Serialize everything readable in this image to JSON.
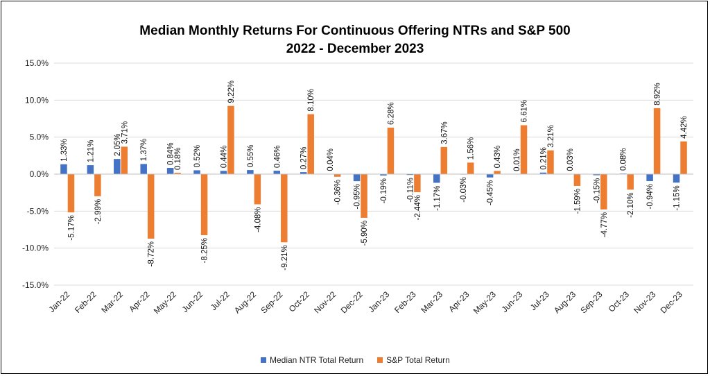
{
  "chart_data": {
    "type": "bar",
    "title": "Median Monthly Returns For Continuous Offering NTRs and S&P 500",
    "subtitle": "2022 - December 2023",
    "categories": [
      "Jan-22",
      "Feb-22",
      "Mar-22",
      "Apr-22",
      "May-22",
      "Jun-22",
      "Jul-22",
      "Aug-22",
      "Sep-22",
      "Oct-22",
      "Nov-22",
      "Dec-22",
      "Jan-23",
      "Feb-23",
      "Mar-23",
      "Apr-23",
      "May-23",
      "Jun-23",
      "Jul-23",
      "Aug-23",
      "Sep-23",
      "Oct-23",
      "Nov-23",
      "Dec-23"
    ],
    "series": [
      {
        "name": "Median NTR Total Return",
        "color": "#4472C4",
        "values": [
          1.33,
          1.21,
          2.05,
          1.37,
          0.84,
          0.52,
          0.44,
          0.55,
          0.46,
          0.27,
          0.04,
          -0.95,
          -0.19,
          -0.11,
          -1.17,
          -0.03,
          -0.45,
          0.01,
          0.21,
          0.03,
          -0.15,
          0.08,
          -0.94,
          -1.15
        ],
        "labels": [
          "1.33%",
          "1.21%",
          "2.05%",
          "1.37%",
          "0.84%",
          "0.52%",
          "0.44%",
          "0.55%",
          "0.46%",
          "0.27%",
          "0.04%",
          "-0.95%",
          "-0.19%",
          "-0.11%",
          "-1.17%",
          "-0.03%",
          "-0.45%",
          "0.01%",
          "0.21%",
          "0.03%",
          "-0.15%",
          "0.08%",
          "-0.94%",
          "-1.15%"
        ]
      },
      {
        "name": "S&P Total Return",
        "color": "#ED7D31",
        "values": [
          -5.17,
          -2.99,
          3.71,
          -8.72,
          0.18,
          -8.25,
          9.22,
          -4.08,
          -9.21,
          8.1,
          -0.36,
          -5.9,
          6.28,
          -2.44,
          3.67,
          1.56,
          0.43,
          6.61,
          3.21,
          -1.59,
          -4.77,
          -2.1,
          8.92,
          4.42
        ],
        "labels": [
          "-5.17%",
          "-2.99%",
          "3.71%",
          "-8.72%",
          "0.18%",
          "-8.25%",
          "9.22%",
          "-4.08%",
          "-9.21%",
          "8.10%",
          "-0.36%",
          "-5.90%",
          "6.28%",
          "-2.44%",
          "3.67%",
          "1.56%",
          "0.43%",
          "6.61%",
          "3.21%",
          "-1.59%",
          "-4.77%",
          "-2.10%",
          "8.92%",
          "4.42%"
        ]
      }
    ],
    "ylim": [
      -15,
      15
    ],
    "yticks": [
      15,
      10,
      5,
      0,
      -5,
      -10,
      -15
    ],
    "ytick_labels": [
      "15.0%",
      "10.0%",
      "5.0%",
      "0.0%",
      "-5.0%",
      "-10.0%",
      "-15.0%"
    ],
    "grid": true,
    "legend_position": "bottom"
  }
}
